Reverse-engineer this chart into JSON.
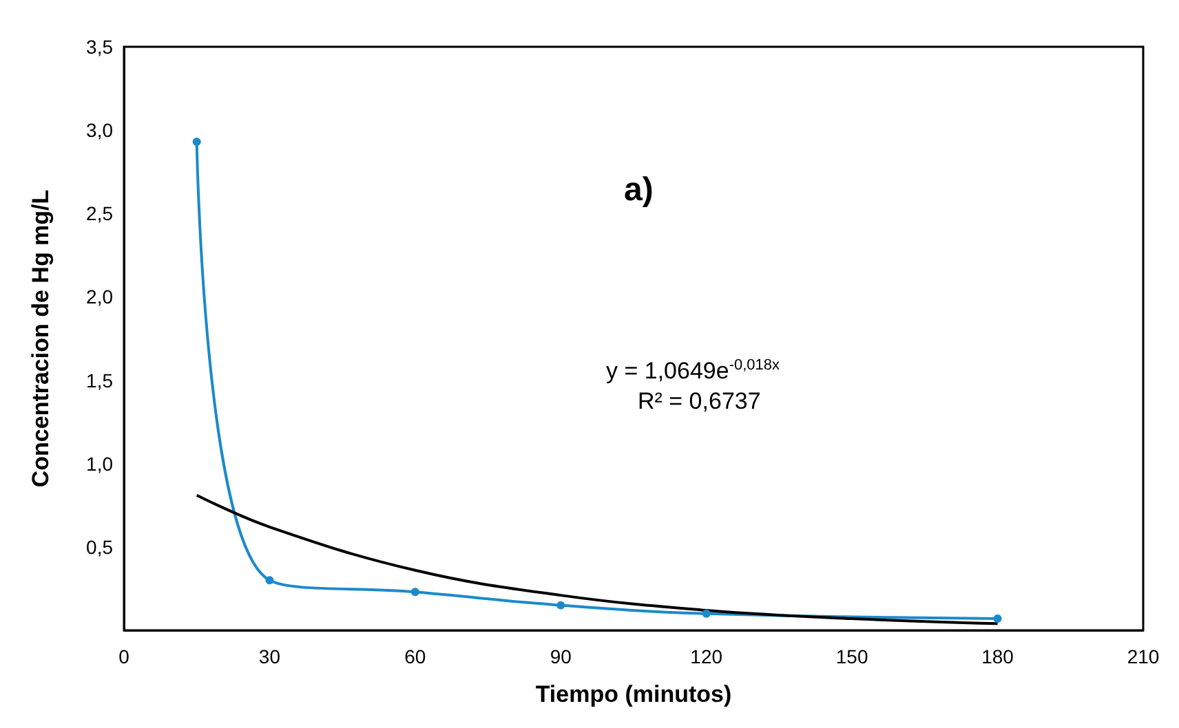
{
  "chart_data": {
    "type": "line",
    "xlabel": "Tiempo (minutos)",
    "ylabel": "Concentracion de Hg mg/L",
    "xlim": [
      0,
      210
    ],
    "xticks": [
      0,
      30,
      60,
      90,
      120,
      150,
      180,
      210
    ],
    "ylim": [
      0,
      3.5
    ],
    "yticks": [
      {
        "value": 0,
        "label": null
      },
      {
        "value": 0.5,
        "label": "0,5"
      },
      {
        "value": 1,
        "label": "1,0"
      },
      {
        "value": 1.5,
        "label": "1,5"
      },
      {
        "value": 2,
        "label": "2,0"
      },
      {
        "value": 2.5,
        "label": "2,5"
      },
      {
        "value": 3,
        "label": "3,0"
      },
      {
        "value": 3.5,
        "label": "3,5"
      }
    ],
    "grid": false,
    "series": [
      {
        "color": "#1b8acb",
        "marker": "circle",
        "x": [
          15,
          30,
          60,
          90,
          120,
          180
        ],
        "values": [
          2.93,
          0.3,
          0.23,
          0.15,
          0.1,
          0.07
        ]
      },
      {
        "color": "#000000",
        "marker": "none",
        "x": [
          15,
          30,
          60,
          90,
          120,
          150,
          180
        ],
        "values": [
          0.81,
          0.62,
          0.36,
          0.21,
          0.12,
          0.07,
          0.04
        ]
      }
    ],
    "annotations": [
      "a)",
      "y = 1,0649e$^{-0,018x}$",
      "R² = 0,6737"
    ]
  }
}
